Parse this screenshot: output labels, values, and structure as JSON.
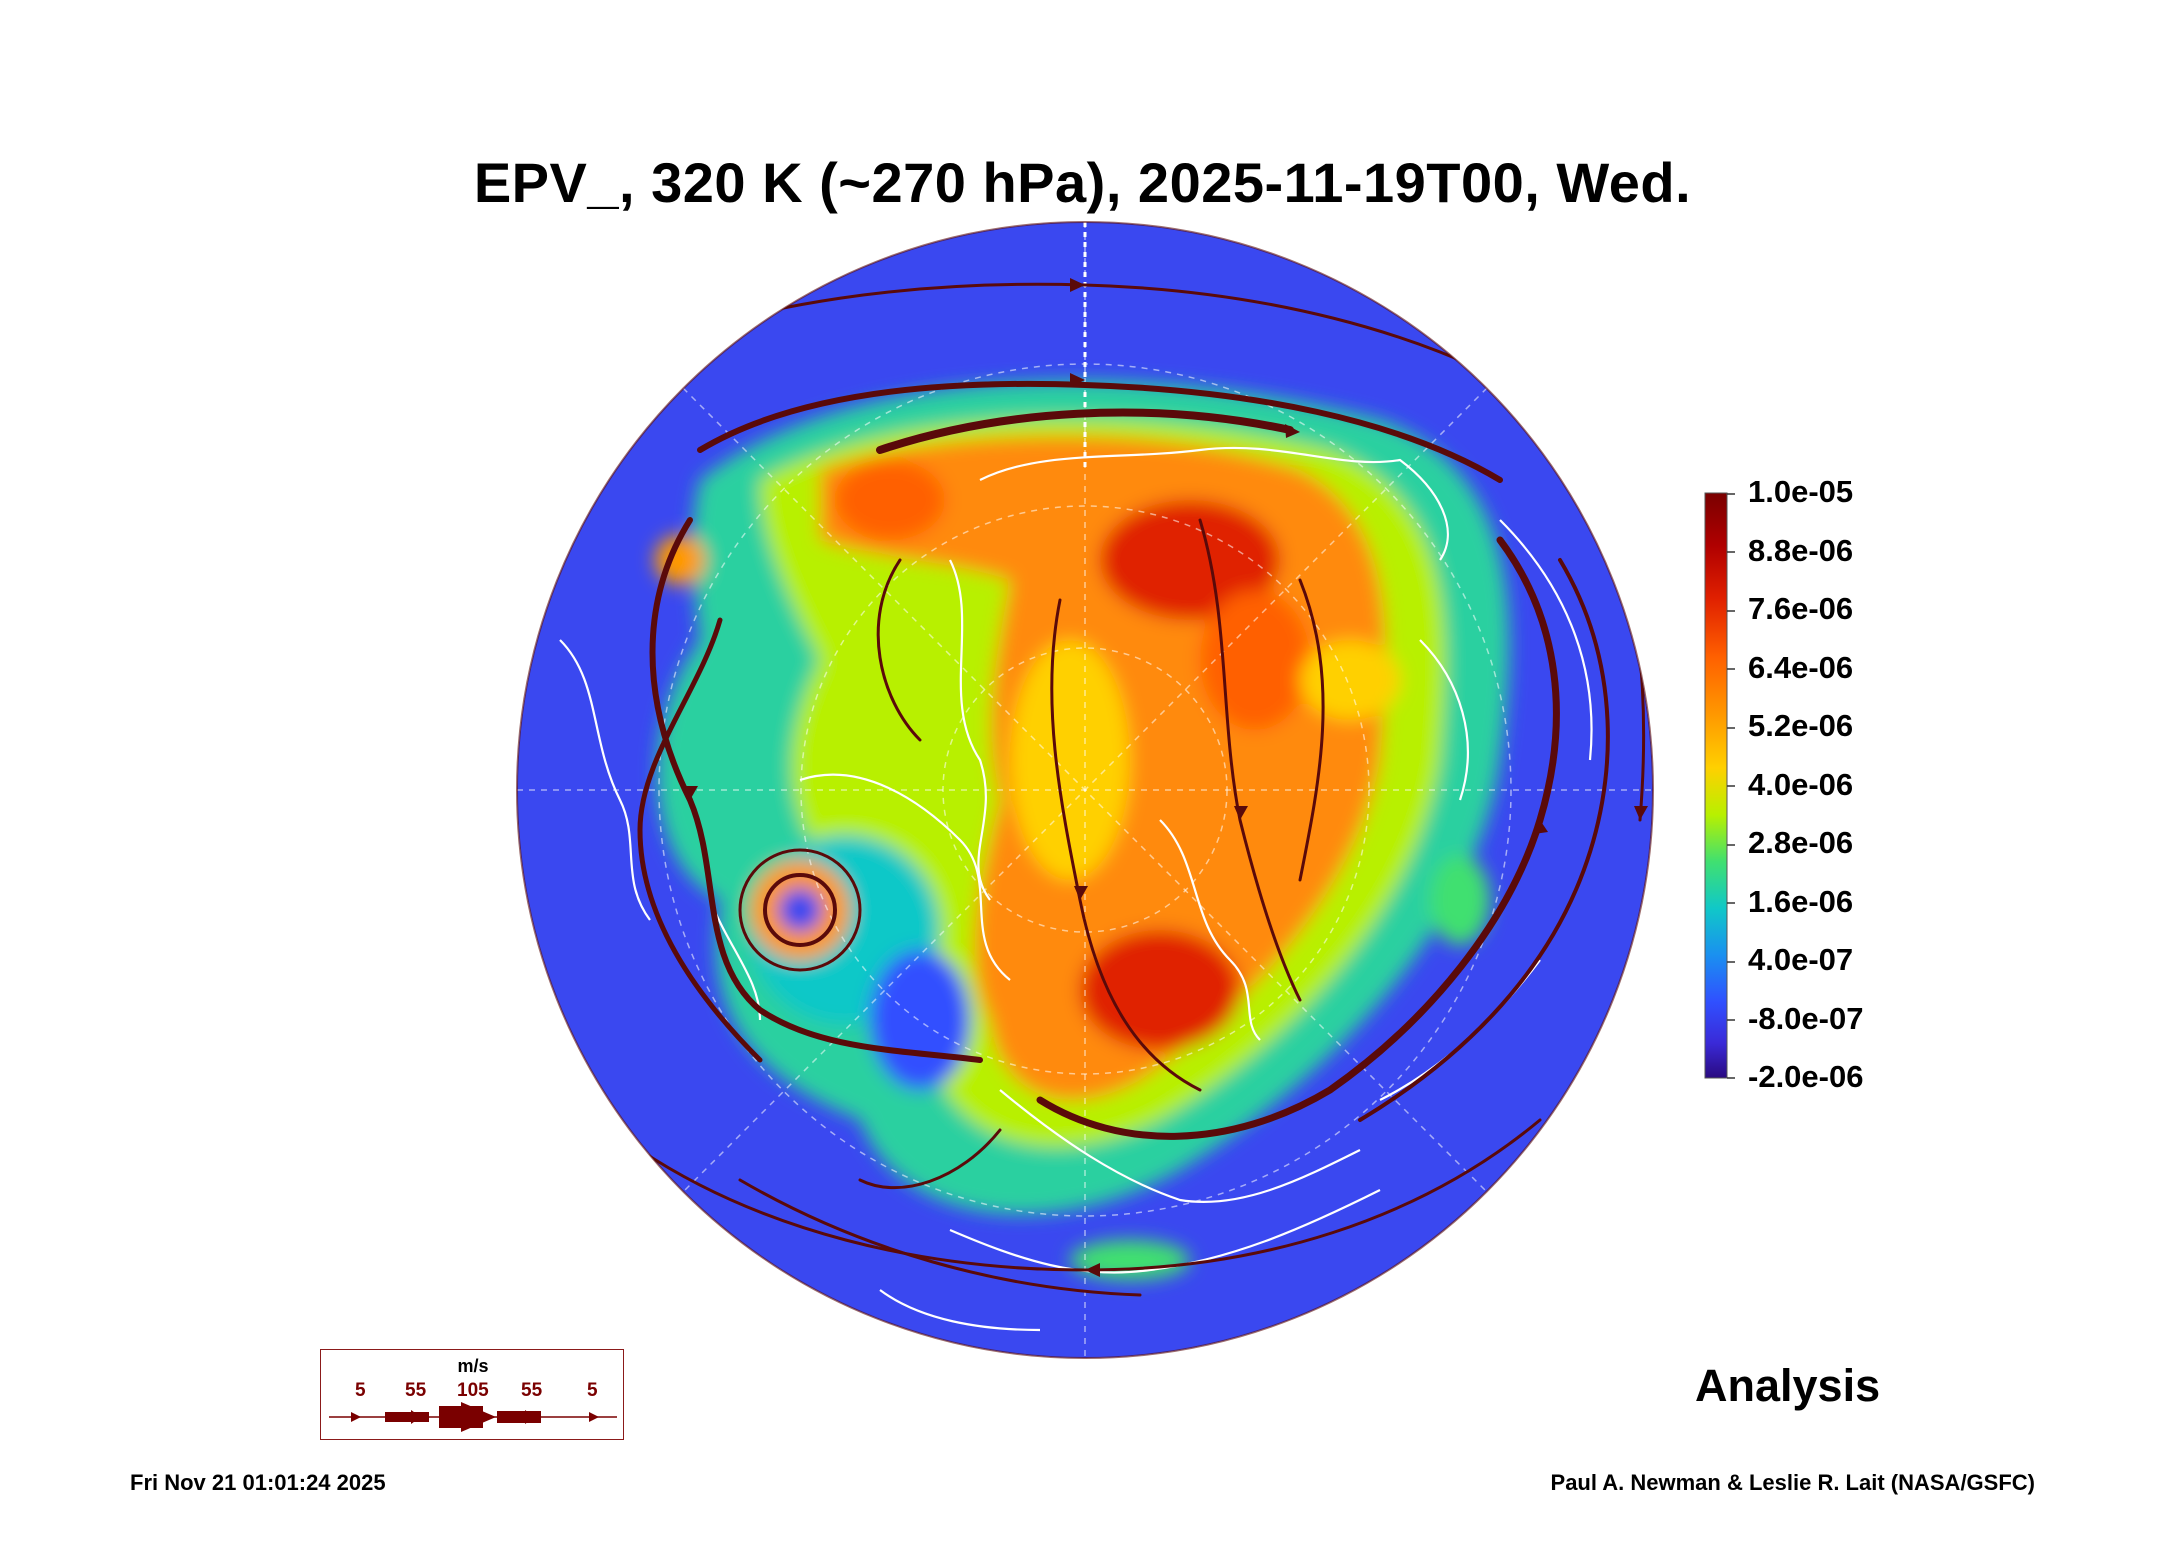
{
  "title": "EPV_, 320 K (~270 hPa), 2025-11-19T00, Wed.",
  "colorbar": {
    "labels": [
      "1.0e-05",
      "8.8e-06",
      "7.6e-06",
      "6.4e-06",
      "5.2e-06",
      "4.0e-06",
      "2.8e-06",
      "1.6e-06",
      "4.0e-07",
      "-8.0e-07",
      "-2.0e-06"
    ],
    "colors": [
      "#7a0000",
      "#b00000",
      "#e02000",
      "#ff6000",
      "#ff9900",
      "#ffd000",
      "#b8f000",
      "#40e070",
      "#10c8c8",
      "#1a90f0",
      "#3050ff",
      "#3a2ad8",
      "#2a0a80"
    ]
  },
  "wind_legend": {
    "unit": "m/s",
    "values": [
      "5",
      "55",
      "105",
      "55",
      "5"
    ]
  },
  "label_analysis": "Analysis",
  "footer": {
    "timestamp": "Fri Nov 21 01:01:24 2025",
    "credit": "Paul A. Newman & Leslie R. Lait (NASA/GSFC)"
  },
  "map_colors": {
    "ocean_low": "#3a48f0",
    "mid": "#2ad0a0",
    "high": "#ff8a10",
    "streamline": "#5a0a0a",
    "coast": "#ffffff"
  }
}
